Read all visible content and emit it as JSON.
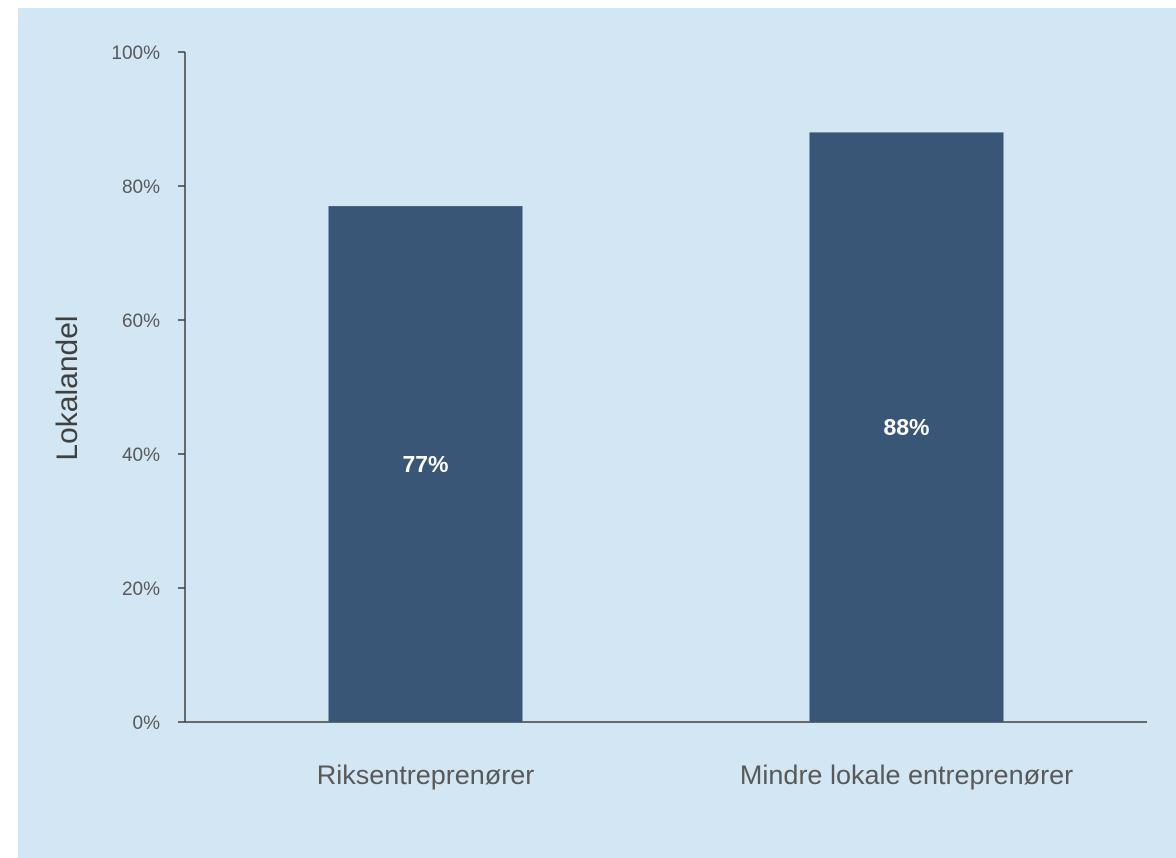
{
  "chart_data": {
    "type": "bar",
    "title": "",
    "xlabel": "",
    "ylabel": "Lokalandel",
    "categories": [
      "Riksentreprenører",
      "Mindre lokale entreprenører"
    ],
    "values": [
      77,
      88
    ],
    "data_labels": [
      "77%",
      "88%"
    ],
    "y_ticks": [
      "0%",
      "20%",
      "40%",
      "60%",
      "80%",
      "100%"
    ],
    "ylim": [
      0,
      100
    ],
    "grid": false,
    "legend": "none",
    "colors": {
      "bar": "#3a5676",
      "background": "#d2e6f4",
      "axis": "#404040",
      "data_label": "#ffffff"
    }
  }
}
